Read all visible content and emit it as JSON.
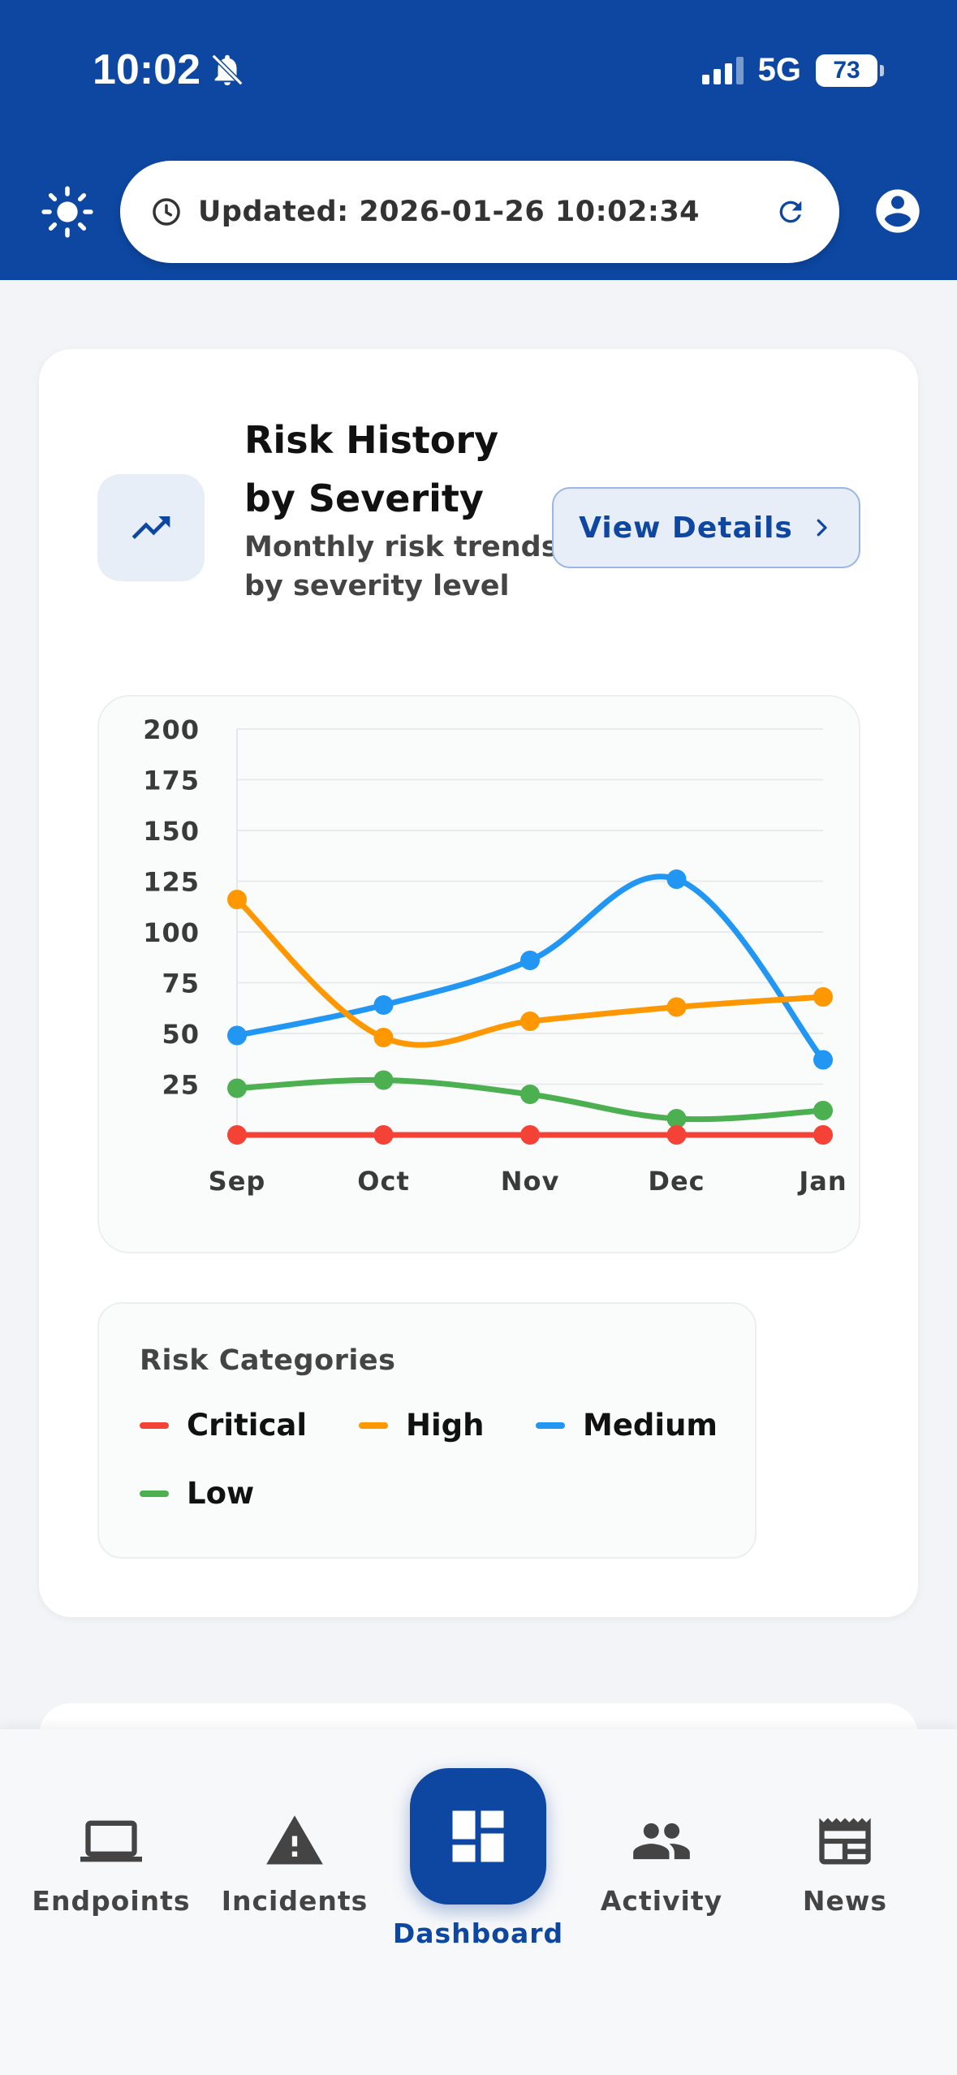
{
  "status_bar": {
    "time": "10:02",
    "network": "5G",
    "battery": "73",
    "icons": [
      "bell-slash-icon",
      "signal-icon",
      "battery-icon"
    ]
  },
  "header": {
    "updated_text": "Updated: 2026-01-26 10:02:34",
    "icons": [
      "sun-icon",
      "clock-icon",
      "refresh-icon",
      "account-circle-icon"
    ]
  },
  "card": {
    "title": "Risk History by Severity",
    "subtitle": "Monthly risk trends by severity level",
    "view_details_label": "View Details",
    "icon": "trending-up-icon"
  },
  "chart_data": {
    "type": "line",
    "title": "",
    "xlabel": "",
    "ylabel": "",
    "categories": [
      "Sep",
      "Oct",
      "Nov",
      "Dec",
      "Jan"
    ],
    "y_ticks": [
      25,
      50,
      75,
      100,
      125,
      150,
      175,
      200
    ],
    "ylim": [
      0,
      200
    ],
    "grid": true,
    "series": [
      {
        "name": "Critical",
        "color": "#f44336",
        "values": [
          0,
          0,
          0,
          0,
          0
        ]
      },
      {
        "name": "High",
        "color": "#ff9800",
        "values": [
          116,
          48,
          56,
          63,
          68
        ]
      },
      {
        "name": "Medium",
        "color": "#2196f3",
        "values": [
          49,
          64,
          86,
          126,
          37
        ]
      },
      {
        "name": "Low",
        "color": "#4caf50",
        "values": [
          23,
          27,
          20,
          8,
          12
        ]
      }
    ]
  },
  "legend": {
    "title": "Risk Categories",
    "items": [
      {
        "label": "Critical",
        "color": "#f44336"
      },
      {
        "label": "High",
        "color": "#ff9800"
      },
      {
        "label": "Medium",
        "color": "#2196f3"
      },
      {
        "label": "Low",
        "color": "#4caf50"
      }
    ]
  },
  "nav": {
    "items": [
      {
        "label": "Endpoints",
        "icon": "laptop-icon"
      },
      {
        "label": "Incidents",
        "icon": "warning-icon"
      },
      {
        "label": "Dashboard",
        "icon": "dashboard-icon",
        "active": true
      },
      {
        "label": "Activity",
        "icon": "people-icon"
      },
      {
        "label": "News",
        "icon": "newspaper-icon"
      }
    ]
  },
  "colors": {
    "primary": "#0d47a1",
    "card_icon_bg": "#e8eef8"
  }
}
